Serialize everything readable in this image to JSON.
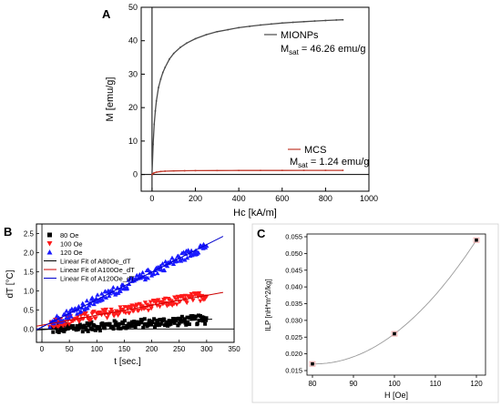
{
  "chart_data": [
    {
      "panel_label": "A",
      "type": "line",
      "xlabel": "Hc [kA/m]",
      "ylabel": "M [emu/g]",
      "xlim": [
        -50,
        1000
      ],
      "ylim": [
        -5,
        50
      ],
      "x_ticks": [
        0,
        200,
        400,
        600,
        800,
        1000
      ],
      "y_ticks": [
        0,
        10,
        20,
        30,
        40,
        50
      ],
      "grid": false,
      "legend": "right",
      "series": [
        {
          "name": "MIONPs",
          "color": "#4a4a4a",
          "annotation": {
            "prefix": "M",
            "subscript": "sat",
            "suffix": " = 46.26 emu/g"
          },
          "x": [
            0,
            5,
            10,
            15,
            20,
            30,
            40,
            50,
            60,
            80,
            100,
            130,
            160,
            200,
            250,
            300,
            350,
            400,
            450,
            500,
            550,
            600,
            650,
            700,
            750,
            800,
            850,
            880
          ],
          "y": [
            0,
            9,
            15,
            19,
            22,
            26,
            28.5,
            30.5,
            32,
            34.5,
            36.2,
            38,
            39.3,
            40.6,
            41.8,
            42.7,
            43.3,
            43.9,
            44.3,
            44.7,
            45.0,
            45.3,
            45.5,
            45.7,
            45.9,
            46.05,
            46.2,
            46.26
          ]
        },
        {
          "name": "MCS",
          "color": "#c0392b",
          "annotation": {
            "prefix": "M",
            "subscript": "sat",
            "suffix": " = 1.24 emu/g"
          },
          "x": [
            0,
            5,
            10,
            20,
            40,
            60,
            100,
            150,
            200,
            300,
            400,
            500,
            600,
            700,
            800,
            880
          ],
          "y": [
            0,
            0.3,
            0.5,
            0.7,
            0.9,
            1.0,
            1.08,
            1.12,
            1.15,
            1.18,
            1.2,
            1.21,
            1.22,
            1.23,
            1.235,
            1.24
          ]
        }
      ]
    },
    {
      "panel_label": "B",
      "type": "scatter",
      "xlabel": "t [sec.]",
      "ylabel": "dT [°C]",
      "xlim": [
        -10,
        350
      ],
      "ylim": [
        -0.35,
        2.75
      ],
      "x_ticks": [
        0,
        50,
        100,
        150,
        200,
        250,
        300,
        350
      ],
      "y_ticks": [
        0.0,
        0.5,
        1.0,
        1.5,
        2.0,
        2.5
      ],
      "y_tick_labels": [
        "0.0",
        "0.5",
        "1.0",
        "1.5",
        "2.0",
        "2.5"
      ],
      "grid": false,
      "legend": "top-left",
      "series": [
        {
          "name": "80 Oe",
          "marker": "square",
          "color": "#000000",
          "slope": 0.0009,
          "intercept": -0.02,
          "spread": 0.12,
          "t_start": 15,
          "t_end": 300
        },
        {
          "name": "100 Oe",
          "marker": "triangle-down",
          "color": "#ff1a1a",
          "slope": 0.0026,
          "intercept": 0.1,
          "spread": 0.12,
          "t_start": 15,
          "t_end": 300
        },
        {
          "name": "120 Oe",
          "marker": "triangle-up",
          "color": "#1a1aff",
          "slope": 0.0072,
          "intercept": 0.05,
          "spread": 0.12,
          "t_start": 15,
          "t_end": 300
        }
      ],
      "fit_lines": [
        {
          "name": "Linear Fit of A80Oe_dT",
          "color": "#000000",
          "slope": 0.0009,
          "intercept": -0.02,
          "x_range": [
            -10,
            310
          ]
        },
        {
          "name": "Linear Fit of A100Oe_dT",
          "color": "#cc0000",
          "slope": 0.0026,
          "intercept": 0.1,
          "x_range": [
            -10,
            330
          ]
        },
        {
          "name": "Linear Fit of A120Oe_dT",
          "color": "#0000cc",
          "slope": 0.0072,
          "intercept": 0.05,
          "x_range": [
            -10,
            330
          ]
        }
      ]
    },
    {
      "panel_label": "C",
      "type": "line",
      "xlabel": "H [Oe]",
      "ylabel": "ILP [nH*m^2/kg]",
      "xlim": [
        80,
        120
      ],
      "ylim": [
        0.015,
        0.055
      ],
      "x_ticks": [
        80,
        90,
        100,
        110,
        120
      ],
      "y_ticks": [
        0.015,
        0.02,
        0.025,
        0.03,
        0.035,
        0.04,
        0.045,
        0.05,
        0.055
      ],
      "y_tick_labels": [
        "0.015",
        "0.020",
        "0.025",
        "0.030",
        "0.035",
        "0.040",
        "0.045",
        "0.050",
        "0.055"
      ],
      "grid": false,
      "legend": "none",
      "series": [
        {
          "name": "",
          "color": "#000000",
          "curve_color": "#9a9a9a",
          "x": [
            80,
            100,
            120
          ],
          "y": [
            0.017,
            0.026,
            0.054
          ]
        }
      ]
    }
  ]
}
